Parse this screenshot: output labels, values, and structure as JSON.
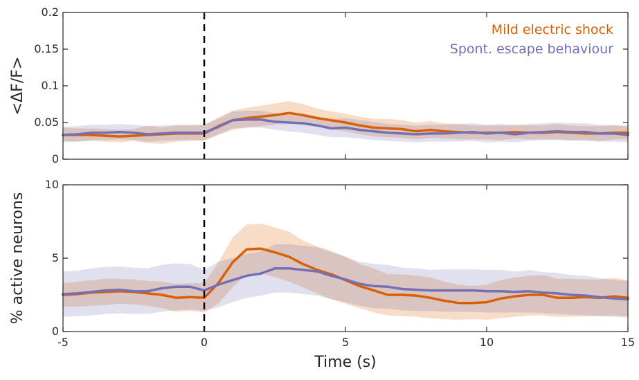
{
  "chart_data": {
    "type": "line",
    "xlabel": "Time (s)",
    "x": [
      -5,
      -4.5,
      -4,
      -3.5,
      -3,
      -2.5,
      -2,
      -1.5,
      -1,
      -0.5,
      0,
      0.5,
      1,
      1.5,
      2,
      2.5,
      3,
      3.5,
      4,
      4.5,
      5,
      5.5,
      6,
      6.5,
      7,
      7.5,
      8,
      8.5,
      9,
      9.5,
      10,
      10.5,
      11,
      11.5,
      12,
      12.5,
      13,
      13.5,
      14,
      14.5,
      15
    ],
    "xlim": [
      -5,
      15
    ],
    "xticks": [
      "-5",
      "0",
      "5",
      "10",
      "15"
    ],
    "event_line_x": 0,
    "legend": [
      {
        "label": "Mild electric shock",
        "color": "#d95f02"
      },
      {
        "label": "Spont. escape behaviour",
        "color": "#7570b3"
      }
    ],
    "legend_position": "top-right",
    "panels": [
      {
        "ylabel": "<ΔF/F>",
        "ylim": [
          0,
          0.2
        ],
        "yticks": [
          "0",
          "0.05",
          "0.1",
          "0.15",
          "0.2"
        ],
        "series": [
          {
            "name": "Mild electric shock",
            "color": "#d95f02",
            "values": [
              0.033,
              0.033,
              0.033,
              0.032,
              0.031,
              0.032,
              0.033,
              0.034,
              0.035,
              0.035,
              0.035,
              0.045,
              0.053,
              0.056,
              0.058,
              0.06,
              0.063,
              0.06,
              0.056,
              0.053,
              0.05,
              0.046,
              0.043,
              0.042,
              0.041,
              0.038,
              0.04,
              0.038,
              0.037,
              0.036,
              0.036,
              0.036,
              0.037,
              0.036,
              0.036,
              0.037,
              0.036,
              0.035,
              0.035,
              0.036,
              0.036
            ],
            "lower": [
              0.025,
              0.024,
              0.025,
              0.024,
              0.023,
              0.025,
              0.022,
              0.021,
              0.024,
              0.025,
              0.025,
              0.033,
              0.04,
              0.043,
              0.045,
              0.047,
              0.049,
              0.047,
              0.044,
              0.041,
              0.038,
              0.034,
              0.031,
              0.03,
              0.029,
              0.027,
              0.029,
              0.028,
              0.027,
              0.027,
              0.027,
              0.026,
              0.028,
              0.027,
              0.027,
              0.027,
              0.026,
              0.026,
              0.025,
              0.027,
              0.027
            ],
            "upper": [
              0.043,
              0.042,
              0.042,
              0.041,
              0.04,
              0.041,
              0.046,
              0.043,
              0.046,
              0.046,
              0.047,
              0.057,
              0.066,
              0.07,
              0.073,
              0.076,
              0.079,
              0.075,
              0.069,
              0.065,
              0.062,
              0.058,
              0.055,
              0.055,
              0.053,
              0.05,
              0.052,
              0.049,
              0.048,
              0.046,
              0.046,
              0.046,
              0.047,
              0.046,
              0.046,
              0.048,
              0.046,
              0.045,
              0.045,
              0.046,
              0.046
            ]
          },
          {
            "name": "Spont. escape behaviour",
            "color": "#7570b3",
            "values": [
              0.033,
              0.034,
              0.036,
              0.036,
              0.037,
              0.036,
              0.034,
              0.035,
              0.036,
              0.036,
              0.036,
              0.044,
              0.053,
              0.054,
              0.054,
              0.051,
              0.05,
              0.049,
              0.046,
              0.042,
              0.043,
              0.04,
              0.038,
              0.036,
              0.035,
              0.034,
              0.035,
              0.035,
              0.036,
              0.037,
              0.035,
              0.036,
              0.034,
              0.036,
              0.037,
              0.038,
              0.037,
              0.037,
              0.035,
              0.035,
              0.033
            ],
            "lower": [
              0.023,
              0.024,
              0.026,
              0.026,
              0.027,
              0.026,
              0.024,
              0.025,
              0.026,
              0.026,
              0.026,
              0.034,
              0.042,
              0.043,
              0.043,
              0.04,
              0.038,
              0.036,
              0.033,
              0.03,
              0.03,
              0.028,
              0.026,
              0.025,
              0.024,
              0.023,
              0.024,
              0.024,
              0.024,
              0.025,
              0.023,
              0.024,
              0.023,
              0.025,
              0.026,
              0.026,
              0.025,
              0.025,
              0.024,
              0.024,
              0.023
            ],
            "upper": [
              0.044,
              0.045,
              0.047,
              0.047,
              0.048,
              0.047,
              0.045,
              0.046,
              0.047,
              0.047,
              0.047,
              0.055,
              0.065,
              0.066,
              0.066,
              0.063,
              0.062,
              0.061,
              0.058,
              0.055,
              0.056,
              0.053,
              0.051,
              0.048,
              0.047,
              0.046,
              0.047,
              0.047,
              0.048,
              0.049,
              0.047,
              0.048,
              0.046,
              0.048,
              0.049,
              0.05,
              0.049,
              0.049,
              0.047,
              0.047,
              0.044
            ]
          }
        ]
      },
      {
        "ylabel": "% active neurons",
        "ylim": [
          0,
          10
        ],
        "yticks": [
          "0",
          "5",
          "10"
        ],
        "series": [
          {
            "name": "Mild electric shock",
            "color": "#d95f02",
            "values": [
              2.5,
              2.55,
              2.65,
              2.7,
              2.75,
              2.7,
              2.6,
              2.5,
              2.3,
              2.35,
              2.3,
              3.3,
              4.7,
              5.6,
              5.65,
              5.4,
              5.1,
              4.6,
              4.2,
              3.9,
              3.5,
              3.1,
              2.8,
              2.5,
              2.5,
              2.45,
              2.3,
              2.1,
              1.95,
              1.95,
              2.0,
              2.25,
              2.4,
              2.5,
              2.5,
              2.3,
              2.3,
              2.35,
              2.3,
              2.4,
              2.3
            ],
            "lower": [
              1.7,
              1.7,
              1.75,
              1.8,
              1.9,
              1.85,
              1.75,
              1.6,
              1.35,
              1.4,
              1.3,
              1.9,
              3.0,
              3.9,
              4.0,
              3.7,
              3.4,
              3.0,
              2.6,
              2.2,
              1.9,
              1.6,
              1.3,
              1.1,
              1.05,
              1.0,
              0.9,
              0.85,
              0.8,
              0.85,
              0.8,
              0.9,
              1.0,
              1.1,
              1.1,
              1.0,
              1.0,
              1.05,
              1.05,
              1.1,
              1.05
            ],
            "upper": [
              3.3,
              3.4,
              3.5,
              3.6,
              3.6,
              3.55,
              3.45,
              3.4,
              3.25,
              3.3,
              3.3,
              4.7,
              6.4,
              7.3,
              7.35,
              7.1,
              6.8,
              6.2,
              5.8,
              5.5,
              5.1,
              4.6,
              4.3,
              3.9,
              3.9,
              3.8,
              3.7,
              3.4,
              3.2,
              3.1,
              3.2,
              3.5,
              3.7,
              3.8,
              3.85,
              3.6,
              3.6,
              3.55,
              3.55,
              3.65,
              3.5
            ]
          },
          {
            "name": "Spont. escape behaviour",
            "color": "#7570b3",
            "values": [
              2.55,
              2.6,
              2.7,
              2.8,
              2.85,
              2.75,
              2.75,
              2.95,
              3.05,
              3.05,
              2.8,
              3.2,
              3.5,
              3.8,
              3.95,
              4.3,
              4.3,
              4.2,
              4.1,
              3.8,
              3.55,
              3.25,
              3.1,
              3.05,
              2.9,
              2.85,
              2.8,
              2.8,
              2.8,
              2.8,
              2.75,
              2.75,
              2.7,
              2.75,
              2.65,
              2.6,
              2.5,
              2.45,
              2.35,
              2.25,
              2.2
            ],
            "lower": [
              1.0,
              1.05,
              1.1,
              1.2,
              1.25,
              1.2,
              1.2,
              1.35,
              1.45,
              1.5,
              1.4,
              1.65,
              2.0,
              2.3,
              2.45,
              2.65,
              2.65,
              2.55,
              2.45,
              2.2,
              2.0,
              1.75,
              1.6,
              1.55,
              1.45,
              1.4,
              1.4,
              1.35,
              1.35,
              1.35,
              1.3,
              1.3,
              1.3,
              1.3,
              1.25,
              1.2,
              1.15,
              1.1,
              1.05,
              1.0,
              0.95
            ],
            "upper": [
              4.1,
              4.15,
              4.3,
              4.4,
              4.45,
              4.35,
              4.3,
              4.55,
              4.65,
              4.6,
              4.2,
              4.75,
              5.0,
              5.3,
              5.45,
              5.95,
              5.95,
              5.85,
              5.75,
              5.4,
              5.1,
              4.75,
              4.6,
              4.55,
              4.35,
              4.3,
              4.2,
              4.25,
              4.25,
              4.25,
              4.2,
              4.2,
              4.1,
              4.2,
              4.05,
              4.0,
              3.85,
              3.8,
              3.65,
              3.5,
              3.45
            ]
          }
        ]
      }
    ]
  }
}
